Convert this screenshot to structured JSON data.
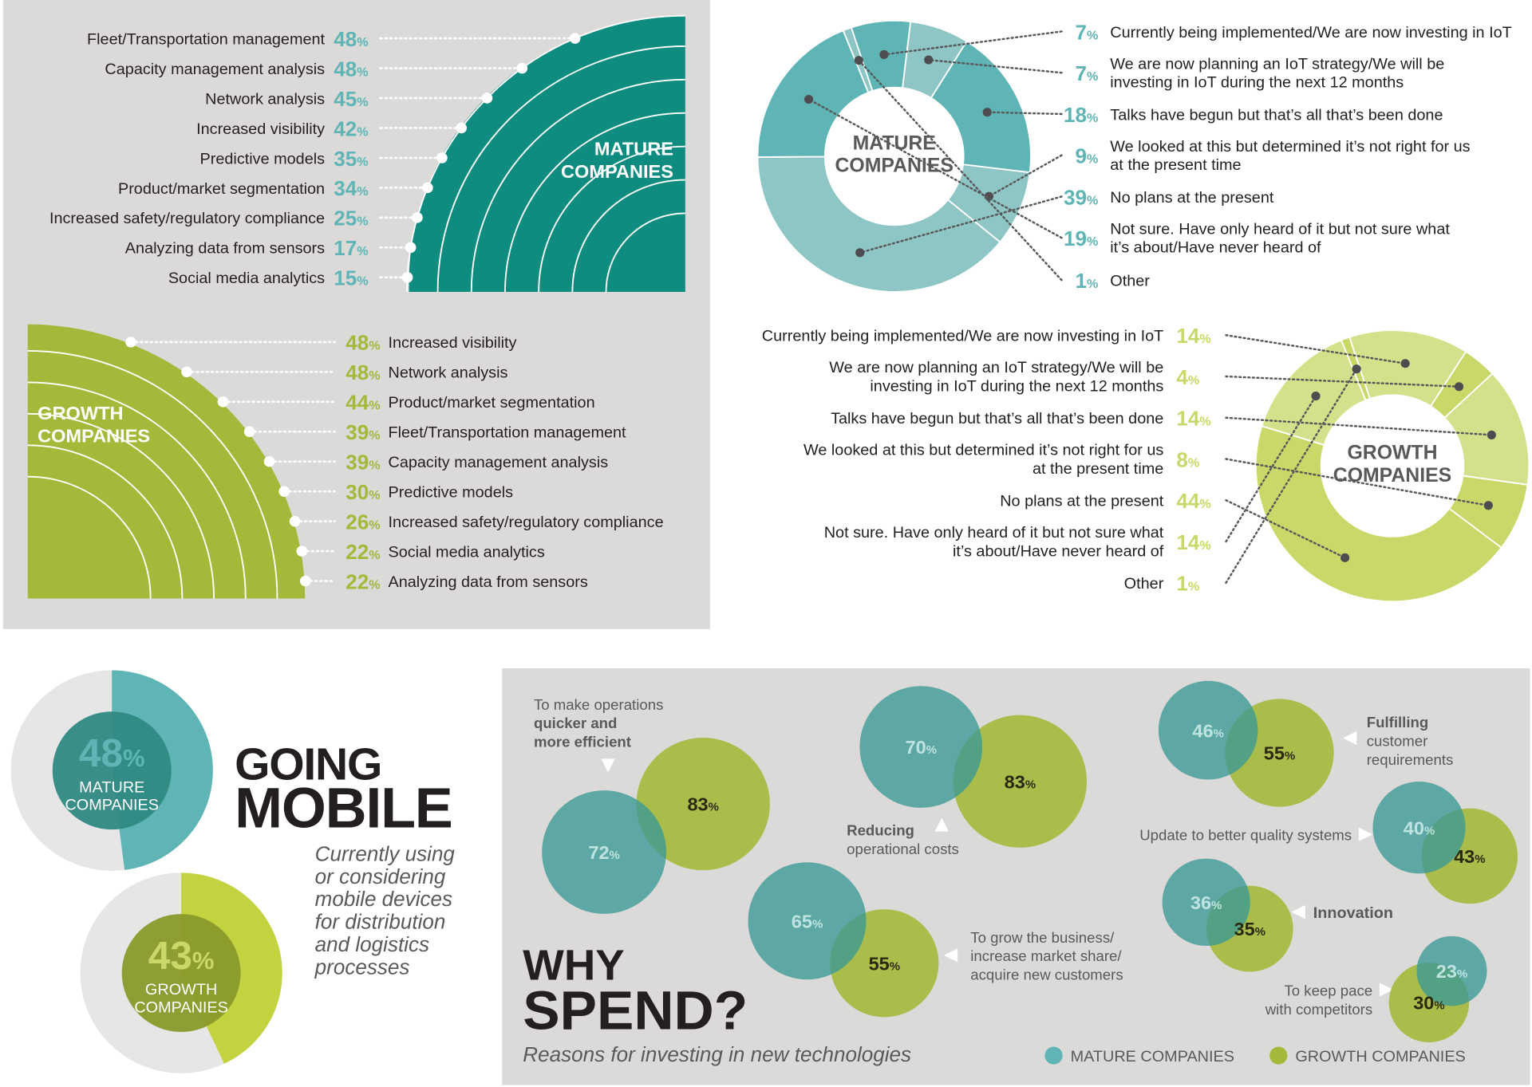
{
  "colors": {
    "mature": "#0e8c7f",
    "mature_light": "#5fb5b5",
    "mature_pale": "#8ec6c5",
    "growth": "#a4b83a",
    "growth_light": "#c9d868",
    "growth_pale": "#d4e08a",
    "panel_bg": "#dbdad8",
    "text": "#231f20"
  },
  "panels": {
    "mature_analytics_label": [
      "MATURE",
      "COMPANIES"
    ],
    "growth_analytics_label": [
      "GROWTH",
      "COMPANIES"
    ],
    "mature_donut_label": [
      "MATURE",
      "COMPANIES"
    ],
    "growth_donut_label": [
      "GROWTH",
      "COMPANIES"
    ]
  },
  "mobile": {
    "title_line1": "GOING",
    "title_line2": "MOBILE",
    "subtitle": [
      "Currently using",
      "or considering",
      "mobile devices",
      "for distribution",
      "and logistics",
      "processes"
    ],
    "mature_label": [
      "MATURE",
      "COMPANIES"
    ],
    "growth_label": [
      "GROWTH",
      "COMPANIES"
    ]
  },
  "spend": {
    "title_line1": "WHY",
    "title_line2": "SPEND?",
    "subtitle": "Reasons for investing in new technologies",
    "legend": [
      "MATURE COMPANIES",
      "GROWTH COMPANIES"
    ],
    "labels": {
      "quicker": [
        "To make operations",
        "quicker and",
        "more efficient"
      ],
      "reducing": [
        "Reducing",
        "operational costs"
      ],
      "fulfilling": [
        "Fulfilling",
        "customer",
        "requirements"
      ],
      "update": "Update to better quality systems",
      "innovation": "Innovation",
      "grow": [
        "To grow the business/",
        "increase market share/",
        "acquire new customers"
      ],
      "keep_pace": [
        "To keep pace",
        "with competitors"
      ]
    }
  },
  "chart_data": [
    {
      "type": "bar",
      "panel": "mature_analytics",
      "unit": "%",
      "categories": [
        "Fleet/Transportation management",
        "Capacity management analysis",
        "Network analysis",
        "Increased visibility",
        "Predictive models",
        "Product/market segmentation",
        "Increased safety/regulatory compliance",
        "Analyzing data from sensors",
        "Social media analytics"
      ],
      "values": [
        48,
        48,
        45,
        42,
        35,
        34,
        25,
        17,
        15
      ]
    },
    {
      "type": "bar",
      "panel": "growth_analytics",
      "unit": "%",
      "categories": [
        "Increased visibility",
        "Network analysis",
        "Product/market segmentation",
        "Fleet/Transportation management",
        "Capacity management analysis",
        "Predictive models",
        "Increased safety/regulatory compliance",
        "Social media analytics",
        "Analyzing data from sensors"
      ],
      "values": [
        48,
        48,
        44,
        39,
        39,
        30,
        26,
        22,
        22
      ]
    },
    {
      "type": "pie",
      "panel": "mature_iot",
      "unit": "%",
      "categories": [
        [
          "Currently being implemented/We are now investing in IoT"
        ],
        [
          "We are now planning an IoT strategy/We will be",
          "investing in IoT during the next 12 months"
        ],
        [
          "Talks have begun but that’s all that’s been done"
        ],
        [
          "We looked at this but determined it’s not right for us",
          "at the present time"
        ],
        [
          "No plans at the present"
        ],
        [
          "Not sure. Have only heard of it but not sure what",
          "it’s about/Have never heard of"
        ],
        [
          "Other"
        ]
      ],
      "values": [
        7,
        7,
        18,
        9,
        39,
        19,
        1
      ]
    },
    {
      "type": "pie",
      "panel": "growth_iot",
      "unit": "%",
      "categories": [
        [
          "Currently being implemented/We are now investing in IoT"
        ],
        [
          "We are now planning an IoT strategy/We will be",
          "investing in IoT during the next 12 months"
        ],
        [
          "Talks have begun but that’s all that’s been done"
        ],
        [
          "We looked at this but determined it’s not right for us",
          "at the present time"
        ],
        [
          "No plans at the present"
        ],
        [
          "Not sure. Have only heard of it but not sure what",
          "it’s about/Have never heard of"
        ],
        [
          "Other"
        ]
      ],
      "values": [
        14,
        4,
        14,
        8,
        44,
        14,
        1
      ]
    },
    {
      "type": "pie",
      "panel": "going_mobile",
      "unit": "%",
      "series": [
        {
          "name": "MATURE COMPANIES",
          "values": [
            48
          ]
        },
        {
          "name": "GROWTH COMPANIES",
          "values": [
            43
          ]
        }
      ]
    },
    {
      "type": "scatter",
      "panel": "why_spend",
      "unit": "%",
      "categories": [
        "To make operations quicker and more efficient",
        "Reducing operational costs",
        "Fulfilling customer requirements",
        "Update to better quality systems",
        "Innovation",
        "To grow the business/increase market share/acquire new customers",
        "To keep pace with competitors"
      ],
      "series": [
        {
          "name": "MATURE COMPANIES",
          "values": [
            72,
            70,
            46,
            40,
            36,
            65,
            23
          ]
        },
        {
          "name": "GROWTH COMPANIES",
          "values": [
            83,
            83,
            55,
            43,
            35,
            55,
            30
          ]
        }
      ]
    }
  ]
}
